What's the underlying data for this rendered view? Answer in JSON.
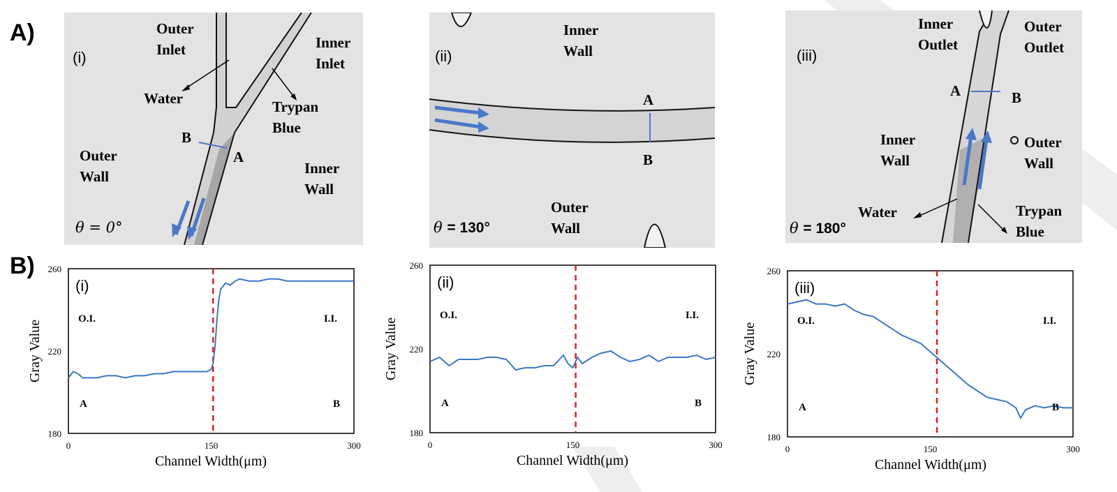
{
  "section_labels": {
    "a": "A)",
    "b": "B)"
  },
  "panels": [
    {
      "id": "i",
      "roman": "(i)",
      "theta_symbol": "θ",
      "theta_value": "= 0°",
      "labels": {
        "outer_inlet": "Outer\nInlet",
        "inner_inlet": "Inner\nInlet",
        "water": "Water",
        "trypan_blue": "Trypan\nBlue",
        "outer_wall": "Outer\nWall",
        "inner_wall": "Inner\nWall",
        "point_a": "A",
        "point_b": "B"
      }
    },
    {
      "id": "ii",
      "roman": "(ii)",
      "theta_symbol": "θ",
      "theta_value": "= 130°",
      "labels": {
        "inner_wall": "Inner\nWall",
        "outer_wall": "Outer\nWall",
        "point_a": "A",
        "point_b": "B"
      }
    },
    {
      "id": "iii",
      "roman": "(iii)",
      "theta_symbol": "θ",
      "theta_value": "= 180°",
      "labels": {
        "inner_outlet": "Inner\nOutlet",
        "outer_outlet": "Outer\nOutlet",
        "inner_wall": "Inner\nWall",
        "outer_wall": "Outer\nWall",
        "water": "Water",
        "trypan_blue": "Trypan\nBlue",
        "point_a": "A",
        "point_b": "B"
      }
    }
  ],
  "chart_data": [
    {
      "type": "line",
      "panel": "(i)",
      "xlabel": "Channel Width(μm)",
      "ylabel": "Gray Value",
      "xlim": [
        0,
        300
      ],
      "ylim": [
        180,
        260
      ],
      "xticks": [
        0,
        150,
        300
      ],
      "yticks": [
        180,
        220,
        260
      ],
      "reference_line_x": 152,
      "annotations": {
        "top_left": "O.I.",
        "top_right": "I.I.",
        "bottom_left": "A",
        "bottom_right": "B"
      },
      "series": [
        {
          "color": "#3b78c4",
          "x": [
            0,
            5,
            10,
            15,
            20,
            30,
            40,
            50,
            60,
            70,
            80,
            90,
            100,
            110,
            120,
            130,
            140,
            145,
            150,
            152,
            154,
            156,
            158,
            160,
            165,
            170,
            175,
            180,
            190,
            200,
            210,
            220,
            230,
            240,
            250,
            260,
            270,
            280,
            290,
            300
          ],
          "y": [
            207,
            210,
            209,
            207,
            207,
            207,
            208,
            208,
            207,
            208,
            208,
            209,
            209,
            210,
            210,
            210,
            210,
            210,
            211,
            214,
            222,
            235,
            245,
            250,
            253,
            252,
            254,
            255,
            254,
            254,
            255,
            255,
            254,
            254,
            254,
            254,
            254,
            254,
            254,
            254
          ]
        }
      ]
    },
    {
      "type": "line",
      "panel": "(ii)",
      "xlabel": "Channel Width(μm)",
      "ylabel": "Gray Value",
      "xlim": [
        0,
        300
      ],
      "ylim": [
        180,
        260
      ],
      "xticks": [
        0,
        150,
        300
      ],
      "yticks": [
        180,
        220,
        260
      ],
      "reference_line_x": 153,
      "annotations": {
        "top_left": "O.I.",
        "top_right": "I.I.",
        "bottom_left": "A",
        "bottom_right": "B"
      },
      "series": [
        {
          "color": "#3b78c4",
          "x": [
            0,
            10,
            20,
            30,
            40,
            50,
            60,
            70,
            80,
            90,
            100,
            110,
            120,
            130,
            140,
            145,
            150,
            155,
            160,
            170,
            180,
            190,
            200,
            210,
            220,
            230,
            240,
            250,
            260,
            270,
            280,
            290,
            300
          ],
          "y": [
            214,
            216,
            212,
            215,
            215,
            215,
            216,
            216,
            215,
            210,
            211,
            211,
            212,
            212,
            217,
            213,
            211,
            216,
            213,
            216,
            218,
            219,
            216,
            214,
            215,
            217,
            214,
            216,
            216,
            216,
            217,
            215,
            216
          ]
        }
      ]
    },
    {
      "type": "line",
      "panel": "(iii)",
      "xlabel": "Channel Width(μm)",
      "ylabel": "Gray Value",
      "xlim": [
        0,
        300
      ],
      "ylim": [
        180,
        260
      ],
      "xticks": [
        0,
        150,
        300
      ],
      "yticks": [
        180,
        220,
        260
      ],
      "reference_line_x": 157,
      "annotations": {
        "top_left": "O.I.",
        "top_right": "I.I.",
        "bottom_left": "A",
        "bottom_right": "B"
      },
      "series": [
        {
          "color": "#3b78c4",
          "x": [
            0,
            10,
            20,
            30,
            40,
            50,
            60,
            70,
            80,
            90,
            100,
            110,
            120,
            130,
            140,
            150,
            160,
            170,
            180,
            190,
            200,
            210,
            220,
            230,
            240,
            245,
            250,
            260,
            270,
            280,
            290,
            300
          ],
          "y": [
            244,
            245,
            246,
            244,
            244,
            243,
            244,
            241,
            239,
            238,
            235,
            232,
            229,
            227,
            225,
            221,
            217,
            213,
            209,
            205,
            202,
            199,
            198,
            197,
            194,
            189,
            193,
            195,
            194,
            195,
            194,
            194
          ]
        }
      ]
    }
  ]
}
